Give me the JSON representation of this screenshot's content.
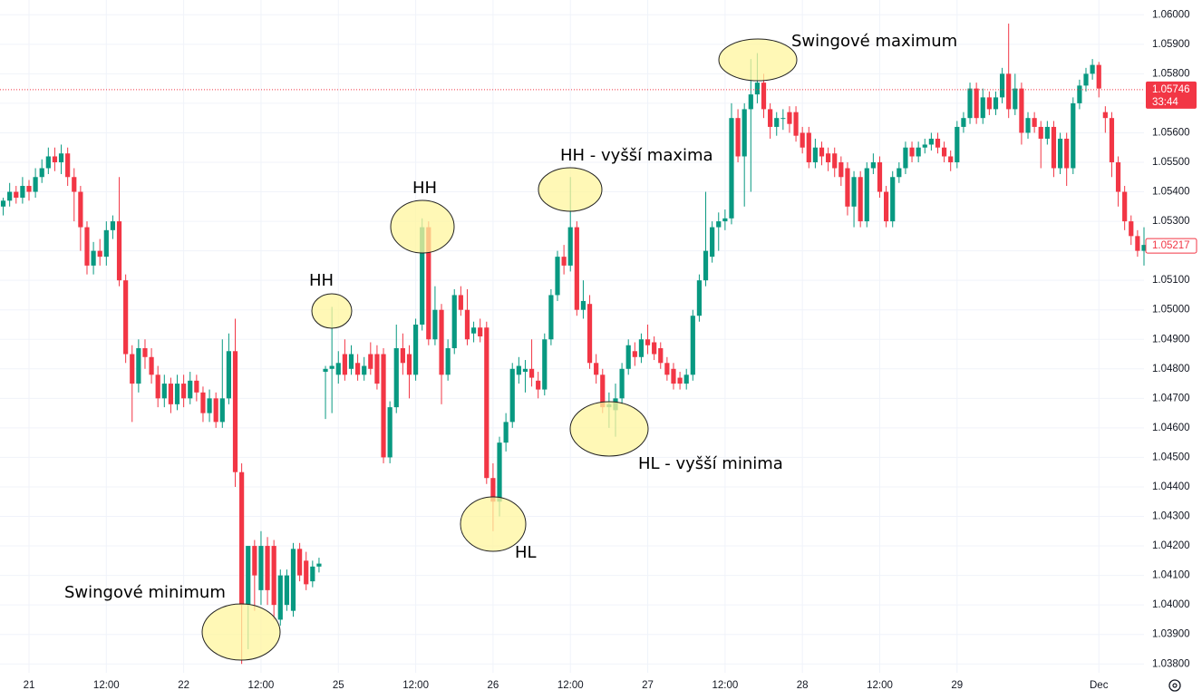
{
  "chart_data": {
    "type": "candlestick",
    "up_color": "#089981",
    "down_color": "#f23645",
    "grid": true,
    "xlim": [
      -4.5,
      173
    ],
    "ylim": [
      1.0377,
      1.0605
    ],
    "xticks": [
      {
        "value": 0,
        "label": "21"
      },
      {
        "value": 12,
        "label": "12:00"
      },
      {
        "value": 24,
        "label": "22"
      },
      {
        "value": 36,
        "label": "12:00"
      },
      {
        "value": 48,
        "label": "25"
      },
      {
        "value": 60,
        "label": "12:00"
      },
      {
        "value": 72,
        "label": "26"
      },
      {
        "value": 84,
        "label": "12:00"
      },
      {
        "value": 96,
        "label": "27"
      },
      {
        "value": 108,
        "label": "12:00"
      },
      {
        "value": 120,
        "label": "28"
      },
      {
        "value": 132,
        "label": "12:00"
      },
      {
        "value": 144,
        "label": "29"
      },
      {
        "value": 166,
        "label": "Dec"
      }
    ],
    "yticks": [
      {
        "value": 1.038,
        "label": "1.03800"
      },
      {
        "value": 1.039,
        "label": "1.03900"
      },
      {
        "value": 1.04,
        "label": "1.04000"
      },
      {
        "value": 1.041,
        "label": "1.04100"
      },
      {
        "value": 1.042,
        "label": "1.04200"
      },
      {
        "value": 1.043,
        "label": "1.04300"
      },
      {
        "value": 1.044,
        "label": "1.04400"
      },
      {
        "value": 1.045,
        "label": "1.04500"
      },
      {
        "value": 1.046,
        "label": "1.04600"
      },
      {
        "value": 1.047,
        "label": "1.04700"
      },
      {
        "value": 1.048,
        "label": "1.04800"
      },
      {
        "value": 1.049,
        "label": "1.04900"
      },
      {
        "value": 1.05,
        "label": "1.05000"
      },
      {
        "value": 1.051,
        "label": "1.05100"
      },
      {
        "value": 1.052,
        "label": "1.05200"
      },
      {
        "value": 1.053,
        "label": "1.05300"
      },
      {
        "value": 1.054,
        "label": "1.05400"
      },
      {
        "value": 1.055,
        "label": "1.05500"
      },
      {
        "value": 1.056,
        "label": "1.05600"
      },
      {
        "value": 1.057,
        "label": "1.05700"
      },
      {
        "value": 1.058,
        "label": "1.05800"
      },
      {
        "value": 1.059,
        "label": "1.05900"
      },
      {
        "value": 1.06,
        "label": "1.06000"
      }
    ],
    "price_line": {
      "value": 1.05746,
      "countdown": "33:44",
      "color": "#f23645"
    },
    "last_price": 1.05217,
    "annotations": [
      "Swingové minimum",
      "HH",
      "HH",
      "HH - vyšší maxima",
      "HL",
      "HL - vyšší minima",
      "Swingové maximum"
    ],
    "x": [
      -4,
      -3,
      -2,
      -1,
      0,
      1,
      2,
      3,
      4,
      5,
      6,
      7,
      8,
      9,
      10,
      11,
      12,
      13,
      14,
      15,
      16,
      17,
      18,
      19,
      20,
      21,
      22,
      23,
      24,
      25,
      26,
      27,
      28,
      29,
      30,
      31,
      32,
      33,
      34,
      35,
      36,
      37,
      38,
      39,
      40,
      41,
      42,
      43,
      44,
      45,
      46,
      47,
      48,
      49,
      50,
      51,
      52,
      53,
      54,
      55,
      56,
      57,
      58,
      59,
      60,
      61,
      62,
      63,
      64,
      65,
      66,
      67,
      68,
      69,
      70,
      71,
      72,
      73,
      74,
      75,
      76,
      77,
      78,
      79,
      80,
      81,
      82,
      83,
      84,
      85,
      86,
      87,
      88,
      89,
      90,
      91,
      92,
      93,
      94,
      95,
      96,
      97,
      98,
      99,
      100,
      101,
      102,
      103,
      104,
      105,
      106,
      107,
      108,
      109,
      110,
      111,
      112,
      113,
      114,
      115,
      116,
      117,
      118,
      119,
      120,
      121,
      122,
      123,
      124,
      125,
      126,
      127,
      128,
      129,
      130,
      131,
      132,
      133,
      134,
      135,
      136,
      137,
      138,
      139,
      140,
      141,
      142,
      143,
      144,
      145,
      146,
      147,
      148,
      149,
      150,
      151,
      152,
      153,
      154,
      155,
      156,
      157,
      158,
      159,
      160,
      161,
      162,
      163,
      164,
      165,
      166,
      167,
      168,
      169,
      170,
      171,
      172,
      173
    ],
    "candles": [
      [
        1.0535,
        1.0538,
        1.0532,
        1.0537
      ],
      [
        1.0537,
        1.0543,
        1.0535,
        1.054
      ],
      [
        1.054,
        1.0542,
        1.0536,
        1.0538
      ],
      [
        1.0538,
        1.0545,
        1.0536,
        1.0542
      ],
      [
        1.0542,
        1.0544,
        1.0537,
        1.054
      ],
      [
        1.054,
        1.0548,
        1.0538,
        1.0545
      ],
      [
        1.0545,
        1.0551,
        1.0543,
        1.0548
      ],
      [
        1.0548,
        1.0555,
        1.0546,
        1.0552
      ],
      [
        1.0552,
        1.0555,
        1.0547,
        1.055
      ],
      [
        1.055,
        1.0556,
        1.0546,
        1.0553
      ],
      [
        1.0553,
        1.0555,
        1.0542,
        1.0545
      ],
      [
        1.0545,
        1.0548,
        1.053,
        1.054
      ],
      [
        1.054,
        1.0542,
        1.052,
        1.0528
      ],
      [
        1.0528,
        1.053,
        1.0512,
        1.0515
      ],
      [
        1.0515,
        1.0523,
        1.0512,
        1.052
      ],
      [
        1.052,
        1.0524,
        1.0515,
        1.0518
      ],
      [
        1.0518,
        1.053,
        1.0515,
        1.0527
      ],
      [
        1.0527,
        1.0532,
        1.0524,
        1.053
      ],
      [
        1.053,
        1.0545,
        1.0508,
        1.051
      ],
      [
        1.051,
        1.0512,
        1.0482,
        1.0485
      ],
      [
        1.0485,
        1.0488,
        1.0462,
        1.0475
      ],
      [
        1.0475,
        1.049,
        1.0472,
        1.0487
      ],
      [
        1.0487,
        1.049,
        1.048,
        1.0484
      ],
      [
        1.0484,
        1.0487,
        1.0475,
        1.0478
      ],
      [
        1.0478,
        1.0481,
        1.0467,
        1.047
      ],
      [
        1.047,
        1.0478,
        1.0467,
        1.0475
      ],
      [
        1.0475,
        1.0477,
        1.0465,
        1.0468
      ],
      [
        1.0468,
        1.0478,
        1.0466,
        1.0475
      ],
      [
        1.0475,
        1.0478,
        1.0467,
        1.047
      ],
      [
        1.047,
        1.0479,
        1.0468,
        1.0476
      ],
      [
        1.0476,
        1.0478,
        1.0469,
        1.0472
      ],
      [
        1.0472,
        1.0474,
        1.0462,
        1.0465
      ],
      [
        1.0465,
        1.0473,
        1.0462,
        1.047
      ],
      [
        1.047,
        1.0472,
        1.046,
        1.0462
      ],
      [
        1.0462,
        1.049,
        1.046,
        1.047
      ],
      [
        1.047,
        1.0492,
        1.0468,
        1.0486
      ],
      [
        1.0486,
        1.0497,
        1.044,
        1.0445
      ],
      [
        1.0445,
        1.0448,
        1.038,
        1.04
      ],
      [
        1.04,
        1.042,
        1.0385,
        1.042
      ],
      [
        1.042,
        1.0422,
        1.0398,
        1.041
      ],
      [
        1.0405,
        1.0425,
        1.04,
        1.042
      ],
      [
        1.042,
        1.0423,
        1.04,
        1.0405
      ],
      [
        1.042,
        1.0422,
        1.0395,
        1.04
      ],
      [
        1.0395,
        1.0412,
        1.0393,
        1.041
      ],
      [
        1.04,
        1.0412,
        1.0398,
        1.041
      ],
      [
        1.0398,
        1.0421,
        1.0396,
        1.0419
      ],
      [
        1.0419,
        1.0421,
        1.0408,
        1.041
      ],
      [
        1.0415,
        1.0418,
        1.0405,
        1.0407
      ],
      [
        1.0408,
        1.0415,
        1.0406,
        1.0413
      ],
      [
        1.0413,
        1.0416,
        1.0411,
        1.0414
      ],
      [
        1.0479,
        1.0481,
        1.0463,
        1.048
      ],
      [
        1.048,
        1.0501,
        1.0465,
        1.0481
      ],
      [
        1.0478,
        1.0486,
        1.0475,
        1.0482
      ],
      [
        1.0485,
        1.049,
        1.0476,
        1.0478
      ],
      [
        1.048,
        1.0488,
        1.0478,
        1.0485
      ],
      [
        1.0482,
        1.0485,
        1.0476,
        1.0478
      ],
      [
        1.0478,
        1.0484,
        1.0476,
        1.0481
      ],
      [
        1.0485,
        1.0489,
        1.0478,
        1.048
      ],
      [
        1.0485,
        1.0488,
        1.0473,
        1.0475
      ],
      [
        1.0485,
        1.0487,
        1.0448,
        1.045
      ],
      [
        1.045,
        1.0469,
        1.0448,
        1.0467
      ],
      [
        1.0467,
        1.0495,
        1.0465,
        1.0487
      ],
      [
        1.0487,
        1.0492,
        1.0478,
        1.0482
      ],
      [
        1.0485,
        1.0488,
        1.047,
        1.0478
      ],
      [
        1.0478,
        1.0497,
        1.0476,
        1.0495
      ],
      [
        1.0495,
        1.0531,
        1.0493,
        1.0528
      ],
      [
        1.0528,
        1.053,
        1.0488,
        1.049
      ],
      [
        1.049,
        1.0508,
        1.0488,
        1.05
      ],
      [
        1.05,
        1.0502,
        1.0468,
        1.0478
      ],
      [
        1.0478,
        1.049,
        1.0476,
        1.0487
      ],
      [
        1.0487,
        1.0507,
        1.0485,
        1.0505
      ],
      [
        1.0505,
        1.0508,
        1.0498,
        1.05
      ],
      [
        1.05,
        1.0507,
        1.0488,
        1.049
      ],
      [
        1.0492,
        1.0496,
        1.0489,
        1.0494
      ],
      [
        1.0494,
        1.0497,
        1.0489,
        1.0491
      ],
      [
        1.0494,
        1.0496,
        1.0441,
        1.0443
      ],
      [
        1.0443,
        1.0448,
        1.0425,
        1.0435
      ],
      [
        1.0435,
        1.0457,
        1.043,
        1.0455
      ],
      [
        1.0455,
        1.0465,
        1.0452,
        1.0462
      ],
      [
        1.0462,
        1.0482,
        1.046,
        1.048
      ],
      [
        1.0478,
        1.0484,
        1.0475,
        1.0481
      ],
      [
        1.0479,
        1.0483,
        1.0472,
        1.048
      ],
      [
        1.048,
        1.049,
        1.0474,
        1.0477
      ],
      [
        1.0476,
        1.0479,
        1.047,
        1.0473
      ],
      [
        1.0473,
        1.0492,
        1.0471,
        1.049
      ],
      [
        1.049,
        1.0507,
        1.0488,
        1.0505
      ],
      [
        1.0505,
        1.052,
        1.0503,
        1.0518
      ],
      [
        1.0518,
        1.0522,
        1.0512,
        1.0515
      ],
      [
        1.0515,
        1.0545,
        1.0513,
        1.0528
      ],
      [
        1.0528,
        1.053,
        1.0498,
        1.05
      ],
      [
        1.05,
        1.051,
        1.0497,
        1.0503
      ],
      [
        1.0502,
        1.0505,
        1.048,
        1.0482
      ],
      [
        1.0482,
        1.0485,
        1.0475,
        1.0478
      ],
      [
        1.0478,
        1.048,
        1.0465,
        1.0467
      ],
      [
        1.0467,
        1.0472,
        1.046,
        1.0468
      ],
      [
        1.0466,
        1.0475,
        1.0457,
        1.047
      ],
      [
        1.047,
        1.0482,
        1.0468,
        1.048
      ],
      [
        1.048,
        1.049,
        1.0478,
        1.0488
      ],
      [
        1.0486,
        1.0489,
        1.0481,
        1.0484
      ],
      [
        1.0484,
        1.0492,
        1.0482,
        1.049
      ],
      [
        1.049,
        1.0495,
        1.0485,
        1.0488
      ],
      [
        1.0489,
        1.0491,
        1.0483,
        1.0485
      ],
      [
        1.0487,
        1.0489,
        1.048,
        1.0482
      ],
      [
        1.0482,
        1.0484,
        1.0476,
        1.0478
      ],
      [
        1.048,
        1.0482,
        1.0473,
        1.0475
      ],
      [
        1.0477,
        1.0479,
        1.0473,
        1.0475
      ],
      [
        1.0475,
        1.048,
        1.0473,
        1.0478
      ],
      [
        1.0478,
        1.05,
        1.0476,
        1.0498
      ],
      [
        1.0498,
        1.0512,
        1.0496,
        1.051
      ],
      [
        1.051,
        1.054,
        1.0508,
        1.052
      ],
      [
        1.0518,
        1.053,
        1.0516,
        1.0528
      ],
      [
        1.0528,
        1.0533,
        1.052,
        1.053
      ],
      [
        1.053,
        1.0534,
        1.0527,
        1.0531
      ],
      [
        1.0531,
        1.057,
        1.0529,
        1.0565
      ],
      [
        1.0565,
        1.0568,
        1.055,
        1.0552
      ],
      [
        1.0552,
        1.057,
        1.0535,
        1.0568
      ],
      [
        1.0568,
        1.0585,
        1.054,
        1.0573
      ],
      [
        1.0573,
        1.0587,
        1.057,
        1.0577
      ],
      [
        1.0577,
        1.058,
        1.0565,
        1.0568
      ],
      [
        1.0568,
        1.057,
        1.0558,
        1.0562
      ],
      [
        1.0562,
        1.0567,
        1.0559,
        1.0565
      ],
      [
        1.0565,
        1.0568,
        1.0561,
        1.0565
      ],
      [
        1.0567,
        1.0569,
        1.056,
        1.0563
      ],
      [
        1.0567,
        1.0569,
        1.0557,
        1.0559
      ],
      [
        1.056,
        1.0562,
        1.0553,
        1.0555
      ],
      [
        1.056,
        1.0562,
        1.0548,
        1.055
      ],
      [
        1.055,
        1.0558,
        1.0548,
        1.0555
      ],
      [
        1.0555,
        1.0557,
        1.0549,
        1.0552
      ],
      [
        1.0553,
        1.0555,
        1.0547,
        1.055
      ],
      [
        1.0553,
        1.0555,
        1.0545,
        1.0548
      ],
      [
        1.055,
        1.0552,
        1.0542,
        1.0545
      ],
      [
        1.0548,
        1.055,
        1.0532,
        1.0535
      ],
      [
        1.0535,
        1.0547,
        1.0528,
        1.0545
      ],
      [
        1.0545,
        1.0547,
        1.0528,
        1.053
      ],
      [
        1.053,
        1.055,
        1.0528,
        1.0548
      ],
      [
        1.0548,
        1.0553,
        1.0546,
        1.055
      ],
      [
        1.055,
        1.0552,
        1.0538,
        1.054
      ],
      [
        1.054,
        1.0542,
        1.0528,
        1.053
      ],
      [
        1.053,
        1.0547,
        1.0528,
        1.0545
      ],
      [
        1.0545,
        1.055,
        1.0543,
        1.0548
      ],
      [
        1.0548,
        1.0557,
        1.0546,
        1.0555
      ],
      [
        1.0555,
        1.0557,
        1.055,
        1.0552
      ],
      [
        1.0552,
        1.0557,
        1.055,
        1.0555
      ],
      [
        1.0555,
        1.0558,
        1.0553,
        1.0556
      ],
      [
        1.0556,
        1.056,
        1.0554,
        1.0558
      ],
      [
        1.0558,
        1.056,
        1.0553,
        1.0555
      ],
      [
        1.0555,
        1.0557,
        1.055,
        1.0552
      ],
      [
        1.0552,
        1.0554,
        1.0547,
        1.055
      ],
      [
        1.055,
        1.0564,
        1.0548,
        1.0562
      ],
      [
        1.0562,
        1.0567,
        1.056,
        1.0565
      ],
      [
        1.0565,
        1.0577,
        1.0563,
        1.0575
      ],
      [
        1.0575,
        1.0577,
        1.0563,
        1.0565
      ],
      [
        1.0565,
        1.0575,
        1.0563,
        1.0572
      ],
      [
        1.0572,
        1.0574,
        1.0566,
        1.0568
      ],
      [
        1.0568,
        1.0574,
        1.0566,
        1.0572
      ],
      [
        1.0572,
        1.0582,
        1.057,
        1.058
      ],
      [
        1.058,
        1.0597,
        1.0565,
        1.0568
      ],
      [
        1.0568,
        1.058,
        1.0566,
        1.0575
      ],
      [
        1.0575,
        1.0577,
        1.0556,
        1.056
      ],
      [
        1.056,
        1.0567,
        1.0558,
        1.0565
      ],
      [
        1.0565,
        1.0567,
        1.056,
        1.0562
      ],
      [
        1.0562,
        1.0564,
        1.0548,
        1.0558
      ],
      [
        1.0558,
        1.0564,
        1.0556,
        1.0562
      ],
      [
        1.0562,
        1.0564,
        1.0545,
        1.0548
      ],
      [
        1.0548,
        1.056,
        1.0546,
        1.0558
      ],
      [
        1.0558,
        1.056,
        1.0542,
        1.0548
      ],
      [
        1.0548,
        1.0572,
        1.0546,
        1.057
      ],
      [
        1.057,
        1.0578,
        1.0568,
        1.0576
      ],
      [
        1.0576,
        1.0582,
        1.0574,
        1.058
      ],
      [
        1.058,
        1.0585,
        1.0578,
        1.0583
      ],
      [
        1.0583,
        1.0584,
        1.0572,
        1.0575
      ],
      [
        1.0567,
        1.0569,
        1.056,
        1.0565
      ],
      [
        1.0565,
        1.0567,
        1.0545,
        1.055
      ],
      [
        1.055,
        1.0552,
        1.0535,
        1.054
      ],
      [
        1.054,
        1.0542,
        1.0527,
        1.053
      ],
      [
        1.053,
        1.0532,
        1.0522,
        1.0525
      ],
      [
        1.0525,
        1.0527,
        1.0518,
        1.052
      ],
      [
        1.052,
        1.0528,
        1.0515,
        1.0522
      ]
    ]
  }
}
